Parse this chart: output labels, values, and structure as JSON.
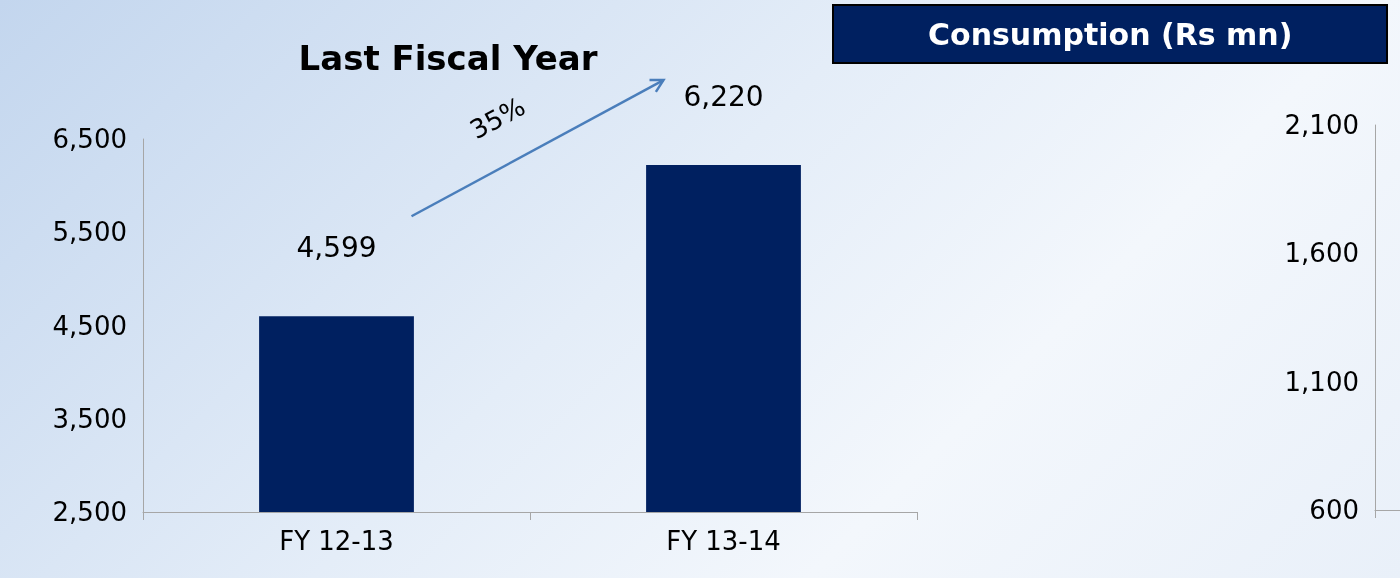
{
  "chart_data": [
    {
      "type": "bar",
      "title": "Last Fiscal Year",
      "categories": [
        "FY 12-13",
        "FY 13-14"
      ],
      "values": [
        4599,
        6220
      ],
      "value_labels": [
        "4,599",
        "6,220"
      ],
      "color": "#002060",
      "ylim": [
        2500,
        6500
      ],
      "yticks": [
        {
          "value": 2500,
          "label": "2,500"
        },
        {
          "value": 3500,
          "label": "3,500"
        },
        {
          "value": 4500,
          "label": "4,500"
        },
        {
          "value": 5500,
          "label": "5,500"
        },
        {
          "value": 6500,
          "label": "6,500"
        }
      ],
      "grid": false,
      "annotations": [
        "35%"
      ]
    },
    {
      "type": "bar",
      "title": "Consumption (Rs mn)",
      "categories": [
        null
      ],
      "values": [
        null
      ],
      "color": "#002060",
      "ylim": [
        600,
        2100
      ],
      "yticks": [
        {
          "value": 600,
          "label": "600"
        },
        {
          "value": 1100,
          "label": "1,100"
        },
        {
          "value": 1600,
          "label": "1,600"
        },
        {
          "value": 2100,
          "label": "2,100"
        }
      ],
      "grid": false,
      "tick_labels": "y"
    }
  ]
}
